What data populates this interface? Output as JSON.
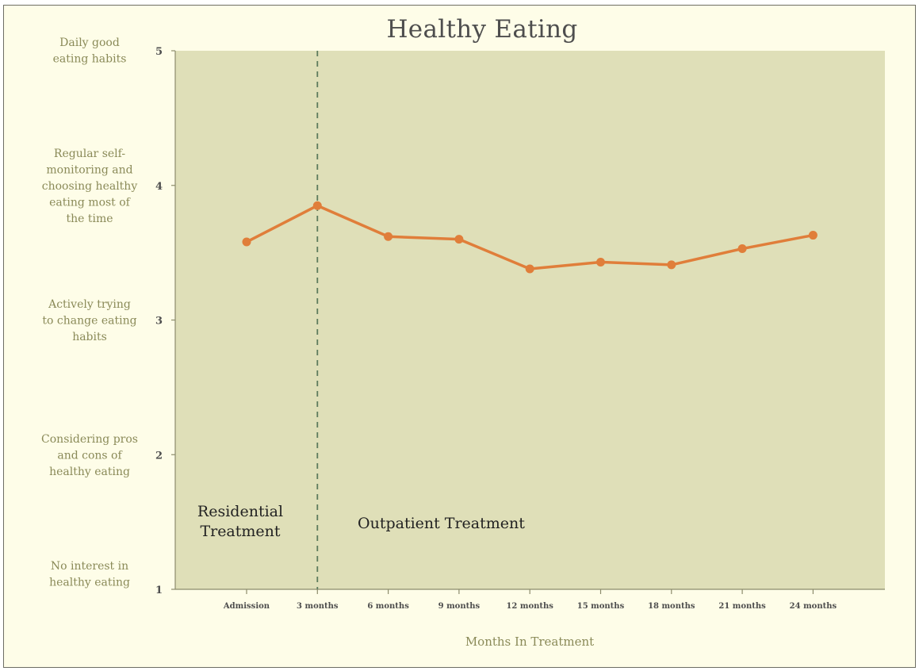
{
  "chart_data": {
    "type": "line",
    "title": "Healthy Eating",
    "xlabel": "Months In Treatment",
    "ylabel": "",
    "categories": [
      "Admission",
      "3 months",
      "6 months",
      "9 months",
      "12 months",
      "15 months",
      "18 months",
      "21 months",
      "24 months"
    ],
    "series": [
      {
        "values": [
          3.58,
          3.85,
          3.62,
          3.6,
          3.38,
          3.43,
          3.41,
          3.53,
          3.63
        ]
      }
    ],
    "ylim": [
      1,
      5
    ],
    "yticks": [
      "1",
      "2",
      "3",
      "4",
      "5"
    ],
    "y_level_descriptions": [
      {
        "value": 5,
        "lines": [
          "Daily good",
          "eating habits"
        ]
      },
      {
        "value": 4,
        "lines": [
          "Regular self-",
          "monitoring and",
          "choosing healthy",
          "eating most of",
          "the time"
        ]
      },
      {
        "value": 3,
        "lines": [
          "Actively trying",
          "to change eating",
          "habits"
        ]
      },
      {
        "value": 2,
        "lines": [
          "Considering pros",
          "and cons of",
          "healthy eating"
        ]
      },
      {
        "value": 1,
        "lines": [
          "No interest in",
          "healthy eating"
        ]
      }
    ],
    "divider_after_category": "3 months",
    "phase_labels": {
      "left": [
        "Residential",
        "Treatment"
      ],
      "right": [
        "Outpatient Treatment"
      ]
    },
    "grid": false,
    "legend": "none",
    "colors": {
      "plot_background": "#dfdfb8",
      "page_background": "#fefde8",
      "line": "#e07e3a",
      "divider": "#5c7a5c",
      "description_text": "#8a8a58"
    }
  }
}
